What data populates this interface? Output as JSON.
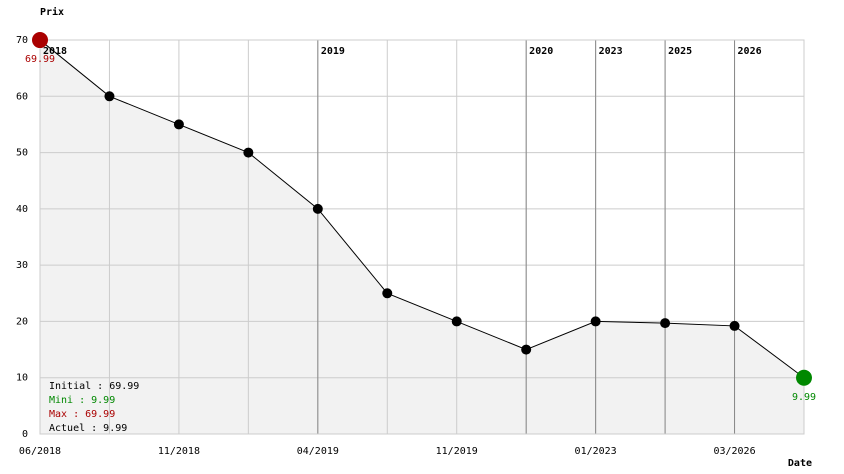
{
  "chart_data": {
    "type": "line",
    "y_label": "Prix",
    "x_label": "Date",
    "categories": [
      "06/2018",
      null,
      "11/2018",
      null,
      "04/2019",
      null,
      "11/2019",
      null,
      "01/2023",
      null,
      "03/2026",
      null
    ],
    "year_labels": [
      "2018",
      null,
      null,
      null,
      "2019",
      null,
      null,
      "2020",
      "2023",
      "2025",
      "2026",
      null
    ],
    "values": [
      69.99,
      60,
      55,
      50,
      40,
      25,
      20,
      15,
      20,
      19.7,
      19.2,
      9.99
    ],
    "color": "#000000",
    "fill": "#f2f2f2",
    "max_color": "#aa0000",
    "min_color": "#008800",
    "ylim": [
      0,
      70
    ],
    "yticks": [
      0,
      10,
      20,
      30,
      40,
      50,
      60,
      70
    ],
    "grid": true,
    "summary": [
      {
        "text": "Initial : 69.99",
        "color": "#000000"
      },
      {
        "text": "Mini : 9.99",
        "color": "#008800"
      },
      {
        "text": "Max : 69.99",
        "color": "#aa0000"
      },
      {
        "text": "Actuel : 9.99",
        "color": "#000000"
      }
    ]
  }
}
